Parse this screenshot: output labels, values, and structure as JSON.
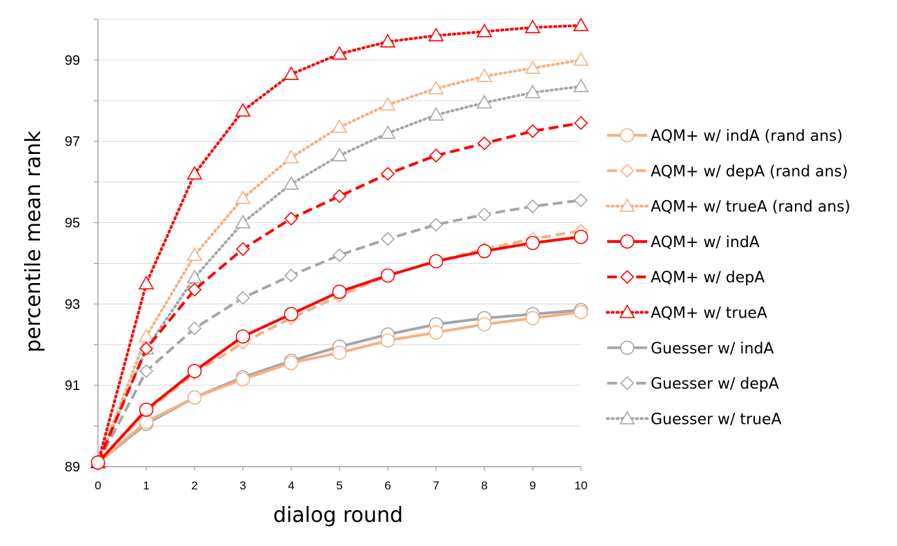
{
  "chart_data": {
    "type": "line",
    "xlabel": "dialog round",
    "ylabel": "percentile mean rank",
    "x": [
      0,
      1,
      2,
      3,
      4,
      5,
      6,
      7,
      8,
      9,
      10
    ],
    "xlim": [
      0,
      10
    ],
    "ylim": [
      89,
      100
    ],
    "y_ticks": [
      89,
      91,
      93,
      95,
      97,
      99
    ],
    "grid": true,
    "legend_position": "right",
    "series": [
      {
        "name": "AQM+ w/ indA (rand ans)",
        "color": "#f4b183",
        "linestyle": "solid",
        "marker": "circle",
        "values": [
          89.1,
          90.1,
          90.7,
          91.15,
          91.55,
          91.8,
          92.1,
          92.3,
          92.5,
          92.65,
          92.8
        ]
      },
      {
        "name": "AQM+ w/ depA (rand ans)",
        "color": "#f4b183",
        "linestyle": "dashed",
        "marker": "diamond",
        "values": [
          89.1,
          90.35,
          91.3,
          92.05,
          92.65,
          93.2,
          93.7,
          94.05,
          94.35,
          94.6,
          94.8
        ]
      },
      {
        "name": "AQM+ w/ trueA (rand ans)",
        "color": "#f4b183",
        "linestyle": "dotted",
        "marker": "triangle",
        "values": [
          89.1,
          92.2,
          94.2,
          95.6,
          96.6,
          97.35,
          97.9,
          98.3,
          98.6,
          98.8,
          99.0
        ]
      },
      {
        "name": "AQM+ w/ indA",
        "color": "#ff0000",
        "linestyle": "solid",
        "marker": "circle",
        "values": [
          89.1,
          90.4,
          91.35,
          92.2,
          92.75,
          93.3,
          93.7,
          94.05,
          94.3,
          94.5,
          94.65
        ]
      },
      {
        "name": "AQM+ w/ depA",
        "color": "#ff0000",
        "linestyle": "dashed",
        "marker": "diamond",
        "values": [
          89.1,
          91.9,
          93.35,
          94.35,
          95.1,
          95.65,
          96.2,
          96.65,
          96.95,
          97.25,
          97.45
        ]
      },
      {
        "name": "AQM+ w/ trueA",
        "color": "#ff0000",
        "linestyle": "dotted",
        "marker": "triangle",
        "values": [
          89.1,
          93.5,
          96.2,
          97.75,
          98.65,
          99.15,
          99.45,
          99.6,
          99.7,
          99.8,
          99.85
        ]
      },
      {
        "name": "Guesser w/ indA",
        "color": "#a6a6a6",
        "linestyle": "solid",
        "marker": "circle",
        "values": [
          89.1,
          90.05,
          90.7,
          91.2,
          91.6,
          91.95,
          92.25,
          92.5,
          92.65,
          92.75,
          92.85
        ]
      },
      {
        "name": "Guesser w/ depA",
        "color": "#a6a6a6",
        "linestyle": "dashed",
        "marker": "diamond",
        "values": [
          89.1,
          91.35,
          92.4,
          93.15,
          93.7,
          94.2,
          94.6,
          94.95,
          95.2,
          95.4,
          95.55
        ]
      },
      {
        "name": "Guesser w/ trueA",
        "color": "#a6a6a6",
        "linestyle": "dotted",
        "marker": "triangle",
        "values": [
          89.1,
          91.9,
          93.65,
          95.0,
          95.95,
          96.65,
          97.2,
          97.65,
          97.95,
          98.2,
          98.35
        ]
      }
    ]
  }
}
